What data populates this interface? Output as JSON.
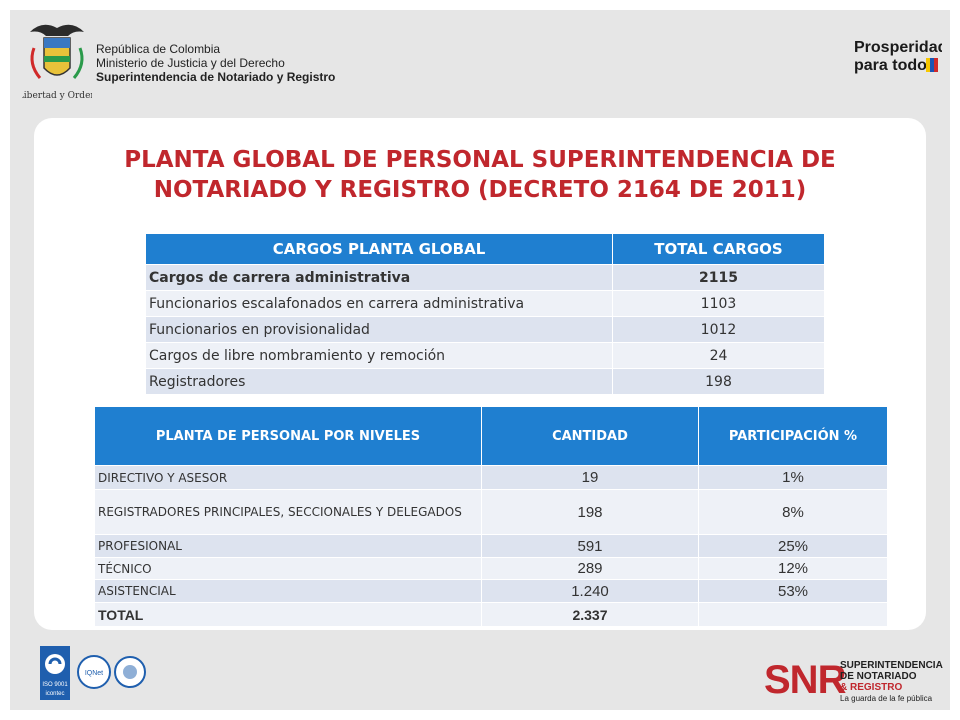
{
  "header": {
    "gov_line1": "República de Colombia",
    "gov_line2": "Ministerio de Justicia y del Derecho",
    "gov_line3": "Superintendencia de Notariado y Registro",
    "coat_caption": "Libertad y Orden",
    "prosperidad_line1": "Prosperidad",
    "prosperidad_line2": "para todos"
  },
  "title": {
    "line1": "PLANTA GLOBAL DE PERSONAL SUPERINTENDENCIA DE",
    "line2": "NOTARIADO Y REGISTRO (DECRETO 2164 DE 2011)"
  },
  "table1": {
    "headers": [
      "CARGOS PLANTA GLOBAL",
      "TOTAL CARGOS"
    ],
    "rows": [
      {
        "label": "Cargos de carrera administrativa",
        "value": "2115",
        "bold": true
      },
      {
        "label": "Funcionarios escalafonados en carrera administrativa",
        "value": "1103"
      },
      {
        "label": "Funcionarios en provisionalidad",
        "value": "1012"
      },
      {
        "label": "Cargos de libre nombramiento y remoción",
        "value": "24"
      },
      {
        "label": "Registradores",
        "value": "198"
      }
    ]
  },
  "table2": {
    "headers": [
      "PLANTA DE PERSONAL POR NIVELES",
      "CANTIDAD",
      "PARTICIPACIÓN %"
    ],
    "rows": [
      {
        "level": "DIRECTIVO Y ASESOR",
        "qty": "19",
        "pct": "1%"
      },
      {
        "level": "REGISTRADORES PRINCIPALES, SECCIONALES Y DELEGADOS",
        "qty": "198",
        "pct": "8%"
      },
      {
        "level": "PROFESIONAL",
        "qty": "591",
        "pct": "25%"
      },
      {
        "level": "TÉCNICO",
        "qty": "289",
        "pct": "12%"
      },
      {
        "level": "ASISTENCIAL",
        "qty": "1.240",
        "pct": "53%"
      }
    ],
    "total": {
      "label": "TOTAL",
      "qty": "2.337",
      "pct": ""
    }
  },
  "footer": {
    "cert_iso": "ISO 9001",
    "cert_icontec": "icontec",
    "cert_iqnet": "IQNet",
    "snr_logo": "SNR",
    "snr_line1": "SUPERINTENDENCIA",
    "snr_line2": "DE NOTARIADO",
    "snr_line3": "& REGISTRO",
    "snr_tagline": "La guarda de la fe pública"
  },
  "colors": {
    "title_red": "#c0272d",
    "header_blue": "#1f7fd0"
  }
}
